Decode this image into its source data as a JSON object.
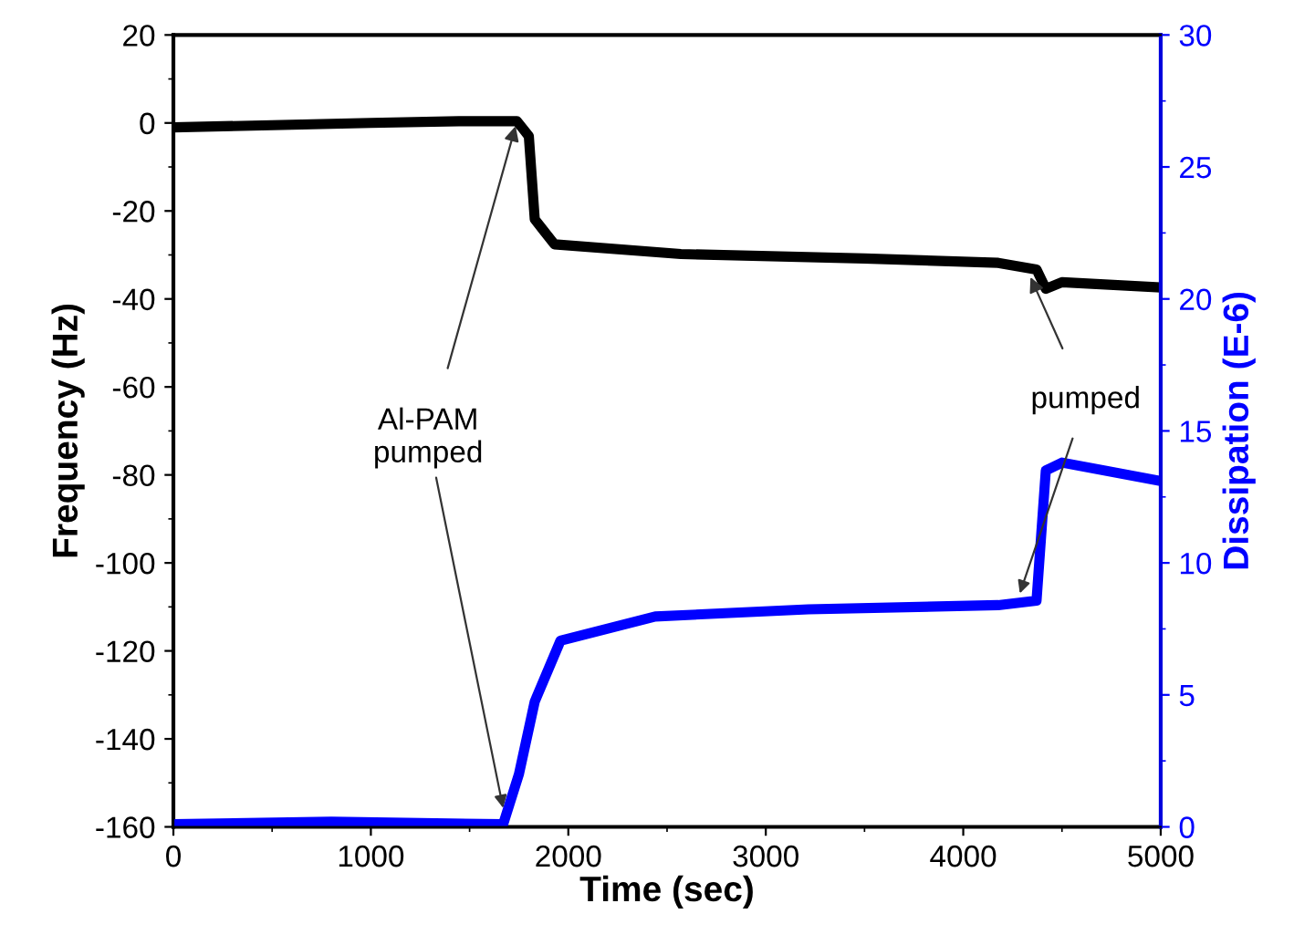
{
  "chart_data": {
    "type": "line",
    "xlabel": "Time (sec)",
    "ylabel": "Frequency (Hz)",
    "y2label": "Dissipation (E-6)",
    "xlim": [
      0,
      5000
    ],
    "xticks": [
      0,
      1000,
      2000,
      3000,
      4000,
      5000
    ],
    "ylim": [
      -160,
      20
    ],
    "yticks": [
      -160,
      -140,
      -120,
      -100,
      -80,
      -60,
      -40,
      -20,
      0,
      20
    ],
    "y2lim": [
      0,
      30
    ],
    "y2ticks": [
      0,
      5,
      10,
      15,
      20,
      25,
      30
    ],
    "grid": false,
    "legend": false,
    "marker": "none",
    "line_style": "solid",
    "series": [
      {
        "color": "#000000",
        "x": [
          0,
          500,
          1000,
          1446,
          1740,
          1800,
          1830,
          1930,
          2570,
          3500,
          4177,
          4371,
          4418,
          4500,
          5000
        ],
        "values": [
          -1,
          -0.5,
          0,
          0.4,
          0.4,
          -3,
          -21.9,
          -27.6,
          -29.8,
          -30.8,
          -31.8,
          -33.3,
          -37.7,
          -36.2,
          -37.4
        ]
      },
      {
        "color": "#0000ff",
        "axis": "y2",
        "x": [
          0,
          800,
          1670,
          1750,
          1830,
          1960,
          2440,
          3216,
          4177,
          4371,
          4418,
          4500,
          5000
        ],
        "values": [
          0.1,
          0.2,
          0.1,
          2,
          4.75,
          7.05,
          7.97,
          8.24,
          8.4,
          8.57,
          13.5,
          13.8,
          13.1
        ]
      }
    ],
    "annotations": [
      {
        "text": "Al-PAM\npumped",
        "x": 1740,
        "y": 0.4
      },
      {
        "text": "pumped",
        "x": 4330,
        "y": -34
      }
    ]
  }
}
